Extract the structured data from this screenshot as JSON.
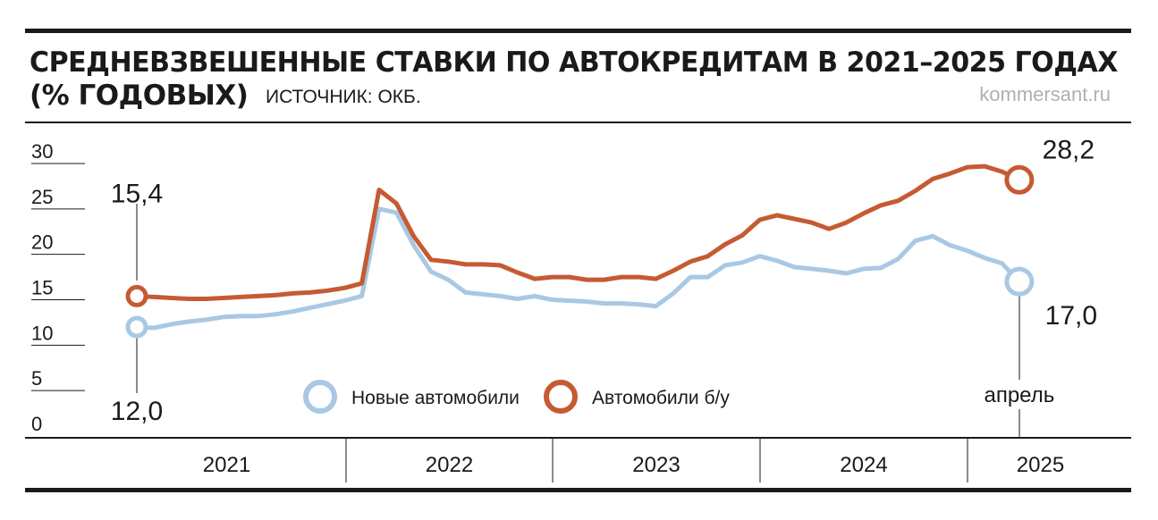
{
  "chart_data": {
    "type": "line",
    "title": "СРЕДНЕВЗВЕШЕННЫЕ СТАВКИ ПО АВТОКРЕДИТАМ В 2021–2025 ГОДАХ",
    "subtitle": "(% ГОДОВЫХ)",
    "source": "ИСТОЧНИК: ОКБ.",
    "credit": "kommersant.ru",
    "years": [
      "2021",
      "2022",
      "2023",
      "2024",
      "2025"
    ],
    "annotation": "апрель",
    "ylim": [
      0,
      30
    ],
    "yticks": [
      0,
      5,
      10,
      15,
      20,
      25,
      30
    ],
    "series": [
      {
        "name": "Новые автомобили",
        "color": "#a9c8e4",
        "values": [
          12.0,
          11.9,
          12.3,
          12.6,
          12.8,
          13.1,
          13.2,
          13.2,
          13.4,
          13.7,
          14.1,
          14.5,
          14.9,
          15.4,
          25.0,
          24.6,
          21.0,
          18.1,
          17.2,
          15.8,
          15.6,
          15.4,
          15.1,
          15.4,
          15.0,
          14.9,
          14.8,
          14.6,
          14.6,
          14.5,
          14.3,
          15.7,
          17.5,
          17.5,
          18.8,
          19.1,
          19.8,
          19.3,
          18.6,
          18.4,
          18.2,
          17.9,
          18.4,
          18.5,
          19.5,
          21.5,
          22.0,
          21.0,
          20.4,
          19.6,
          19.0,
          17.0
        ],
        "value_labels": [
          "12,0",
          null,
          null,
          null,
          null,
          null,
          null,
          null,
          null,
          null,
          null,
          null,
          null,
          null,
          null,
          null,
          null,
          null,
          null,
          null,
          null,
          null,
          null,
          null,
          null,
          null,
          null,
          null,
          null,
          null,
          null,
          null,
          null,
          null,
          null,
          null,
          null,
          null,
          null,
          null,
          null,
          null,
          null,
          null,
          null,
          null,
          null,
          null,
          null,
          null,
          null,
          "17,0"
        ]
      },
      {
        "name": "Автомобили б/у",
        "color": "#c65a33",
        "values": [
          15.4,
          15.3,
          15.2,
          15.1,
          15.1,
          15.2,
          15.3,
          15.4,
          15.5,
          15.7,
          15.8,
          16.0,
          16.3,
          16.8,
          27.1,
          25.6,
          22.0,
          19.4,
          19.2,
          18.9,
          18.9,
          18.8,
          18.0,
          17.3,
          17.5,
          17.5,
          17.2,
          17.2,
          17.5,
          17.5,
          17.3,
          18.2,
          19.2,
          19.8,
          21.1,
          22.1,
          23.8,
          24.3,
          23.9,
          23.5,
          22.8,
          23.5,
          24.5,
          25.4,
          25.9,
          27.0,
          28.3,
          28.9,
          29.6,
          29.7,
          29.1,
          28.2
        ],
        "value_labels": [
          "15,4",
          null,
          null,
          null,
          null,
          null,
          null,
          null,
          null,
          null,
          null,
          null,
          null,
          null,
          null,
          null,
          null,
          null,
          null,
          null,
          null,
          null,
          null,
          null,
          null,
          null,
          null,
          null,
          null,
          null,
          null,
          null,
          null,
          null,
          null,
          null,
          null,
          null,
          null,
          null,
          null,
          null,
          null,
          null,
          null,
          null,
          null,
          null,
          null,
          null,
          null,
          "28,2"
        ]
      }
    ]
  }
}
